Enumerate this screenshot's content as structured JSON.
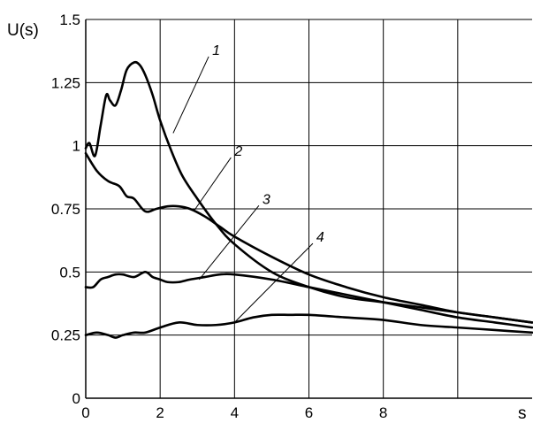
{
  "chart_data": {
    "type": "line",
    "title": "",
    "xlabel": "s",
    "ylabel": "U(s)",
    "xlim": [
      0,
      12
    ],
    "ylim": [
      0,
      1.5
    ],
    "x_ticks": [
      0,
      2,
      4,
      6,
      8
    ],
    "x_tick_labels": [
      "0",
      "2",
      "4",
      "6",
      "8"
    ],
    "y_ticks": [
      0,
      0.25,
      0.5,
      0.75,
      1,
      1.25,
      1.5
    ],
    "y_tick_labels": [
      "0",
      "0.25",
      "0.5",
      "0.75",
      "1",
      "1.25",
      "1.5"
    ],
    "grid": true,
    "legend": "none",
    "line_color": "#000000",
    "series": [
      {
        "name": "1",
        "x": [
          0,
          0.1,
          0.25,
          0.4,
          0.55,
          0.65,
          0.8,
          0.95,
          1.1,
          1.3,
          1.45,
          1.6,
          1.8,
          2,
          2.3,
          2.6,
          3,
          3.5,
          4,
          5,
          6,
          7,
          8,
          9,
          10,
          11,
          12
        ],
        "y": [
          0.99,
          1.01,
          0.96,
          1.08,
          1.2,
          1.18,
          1.16,
          1.22,
          1.3,
          1.33,
          1.32,
          1.28,
          1.2,
          1.1,
          0.98,
          0.88,
          0.79,
          0.69,
          0.61,
          0.5,
          0.44,
          0.4,
          0.38,
          0.36,
          0.34,
          0.32,
          0.3
        ]
      },
      {
        "name": "2",
        "x": [
          0,
          0.3,
          0.6,
          0.9,
          1.1,
          1.3,
          1.6,
          1.9,
          2.2,
          2.5,
          2.8,
          3.2,
          3.6,
          4,
          5,
          6,
          7,
          8,
          9,
          10,
          11,
          12
        ],
        "y": [
          0.97,
          0.9,
          0.86,
          0.84,
          0.8,
          0.79,
          0.74,
          0.75,
          0.76,
          0.76,
          0.75,
          0.72,
          0.68,
          0.64,
          0.56,
          0.49,
          0.44,
          0.4,
          0.37,
          0.34,
          0.32,
          0.3
        ]
      },
      {
        "name": "3",
        "x": [
          0,
          0.2,
          0.4,
          0.6,
          0.8,
          1,
          1.3,
          1.6,
          1.8,
          2,
          2.2,
          2.5,
          2.8,
          3.2,
          3.6,
          4,
          5,
          6,
          7,
          8,
          9,
          10,
          11,
          12
        ],
        "y": [
          0.44,
          0.44,
          0.47,
          0.48,
          0.49,
          0.49,
          0.48,
          0.5,
          0.48,
          0.47,
          0.46,
          0.46,
          0.47,
          0.48,
          0.49,
          0.49,
          0.47,
          0.44,
          0.41,
          0.38,
          0.35,
          0.32,
          0.3,
          0.28
        ]
      },
      {
        "name": "4",
        "x": [
          0,
          0.3,
          0.6,
          0.8,
          1,
          1.3,
          1.6,
          2,
          2.5,
          3,
          3.5,
          4,
          4.5,
          5,
          5.5,
          6,
          7,
          8,
          9,
          10,
          11,
          12
        ],
        "y": [
          0.25,
          0.26,
          0.25,
          0.24,
          0.25,
          0.26,
          0.26,
          0.28,
          0.3,
          0.29,
          0.29,
          0.3,
          0.32,
          0.33,
          0.33,
          0.33,
          0.32,
          0.31,
          0.29,
          0.28,
          0.27,
          0.26
        ]
      }
    ],
    "curve_labels": [
      {
        "text": "1",
        "x": 3.4,
        "y": 1.36,
        "anchor_x": 2.35,
        "anchor_y": 1.05
      },
      {
        "text": "2",
        "x": 4.0,
        "y": 0.96,
        "anchor_x": 2.9,
        "anchor_y": 0.74
      },
      {
        "text": "3",
        "x": 4.75,
        "y": 0.77,
        "anchor_x": 3.05,
        "anchor_y": 0.47
      },
      {
        "text": "4",
        "x": 6.2,
        "y": 0.62,
        "anchor_x": 4.0,
        "anchor_y": 0.3
      }
    ]
  }
}
